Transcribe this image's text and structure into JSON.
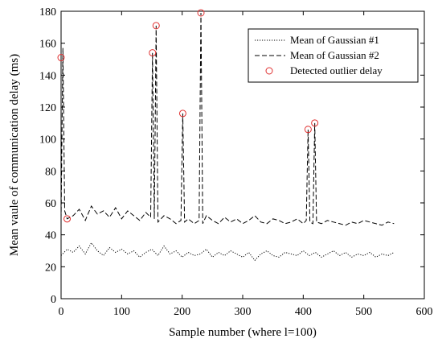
{
  "chart_data": {
    "type": "line",
    "xlabel": "Sample number (where l=100)",
    "ylabel": "Mean vaule of communication delay (ms)",
    "xlim": [
      0,
      600
    ],
    "ylim": [
      0,
      180
    ],
    "xticks": [
      0,
      100,
      200,
      300,
      400,
      500,
      600
    ],
    "yticks": [
      0,
      20,
      40,
      60,
      80,
      100,
      120,
      140,
      160,
      180
    ],
    "grid": false,
    "legend_position": "top-right",
    "series": [
      {
        "name": "Mean of Gaussian #1",
        "style": "dotted",
        "color": "#000000",
        "x": [
          0,
          10,
          20,
          30,
          40,
          50,
          60,
          70,
          80,
          90,
          100,
          110,
          120,
          130,
          140,
          150,
          160,
          170,
          180,
          190,
          200,
          210,
          220,
          230,
          240,
          250,
          260,
          270,
          280,
          290,
          300,
          310,
          320,
          330,
          340,
          350,
          360,
          370,
          380,
          390,
          400,
          410,
          420,
          430,
          440,
          450,
          460,
          470,
          480,
          490,
          500,
          510,
          520,
          530,
          540,
          550
        ],
        "values": [
          27,
          31,
          29,
          33,
          28,
          35,
          30,
          27,
          32,
          29,
          31,
          28,
          30,
          26,
          29,
          31,
          27,
          33,
          28,
          30,
          26,
          29,
          27,
          28,
          31,
          26,
          29,
          27,
          30,
          28,
          26,
          29,
          24,
          28,
          30,
          27,
          26,
          29,
          28,
          27,
          30,
          27,
          29,
          26,
          28,
          30,
          27,
          29,
          26,
          28,
          27,
          29,
          26,
          28,
          27,
          29
        ]
      },
      {
        "name": "Mean of Gaussian #2",
        "style": "dashed",
        "color": "#000000",
        "x": [
          0,
          3,
          6,
          10,
          20,
          30,
          40,
          50,
          60,
          70,
          80,
          90,
          100,
          110,
          120,
          130,
          140,
          148,
          151,
          154,
          157,
          160,
          170,
          180,
          190,
          198,
          201,
          204,
          210,
          220,
          228,
          231,
          234,
          240,
          250,
          260,
          270,
          280,
          290,
          300,
          310,
          320,
          330,
          340,
          350,
          360,
          370,
          380,
          390,
          400,
          405,
          408,
          411,
          416,
          419,
          422,
          430,
          440,
          450,
          460,
          470,
          480,
          490,
          500,
          510,
          520,
          530,
          540,
          550
        ],
        "values": [
          50,
          157,
          55,
          50,
          52,
          56,
          49,
          58,
          53,
          55,
          51,
          57,
          50,
          55,
          52,
          49,
          54,
          51,
          154,
          50,
          171,
          48,
          52,
          50,
          47,
          49,
          116,
          48,
          50,
          47,
          49,
          179,
          47,
          52,
          49,
          47,
          51,
          48,
          50,
          47,
          49,
          52,
          48,
          47,
          50,
          49,
          47,
          48,
          50,
          47,
          49,
          106,
          48,
          47,
          110,
          48,
          47,
          49,
          48,
          47,
          46,
          48,
          47,
          49,
          48,
          47,
          46,
          48,
          47
        ]
      },
      {
        "name": "Detected outlier delay",
        "style": "markers",
        "color": "#e03030",
        "x": [
          0,
          10,
          151,
          157,
          201,
          231,
          408,
          419
        ],
        "values": [
          151,
          50,
          154,
          171,
          116,
          179,
          106,
          110
        ]
      }
    ]
  }
}
